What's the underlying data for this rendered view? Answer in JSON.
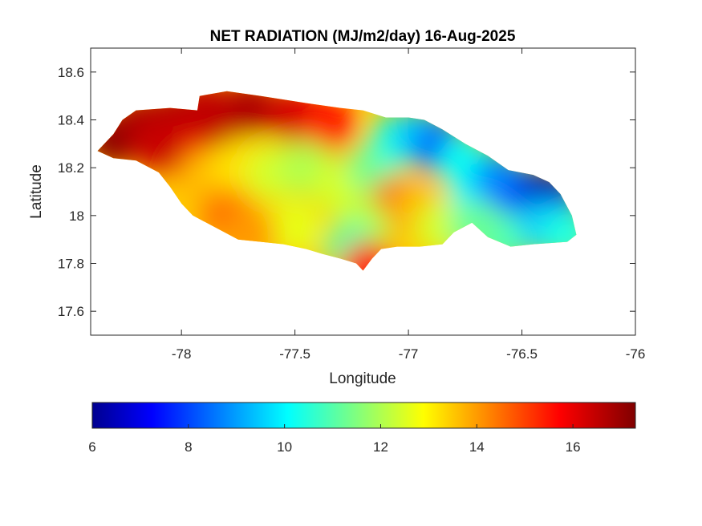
{
  "chart_data": {
    "type": "heatmap",
    "title": "NET RADIATION (MJ/m2/day) 16-Aug-2025",
    "xlabel": "Longitude",
    "ylabel": "Latitude",
    "xlim": [
      -78.4,
      -76
    ],
    "ylim": [
      17.5,
      18.7
    ],
    "xticks": [
      -78,
      -77.5,
      -77,
      -76.5,
      -76
    ],
    "xtick_labels": [
      "-78",
      "-77.5",
      "-77",
      "-76.5",
      "-76"
    ],
    "yticks": [
      17.6,
      17.8,
      18,
      18.2,
      18.4,
      18.6
    ],
    "ytick_labels": [
      "17.6",
      "17.8",
      "18",
      "18.2",
      "18.4",
      "18.6"
    ],
    "colormap": "jet",
    "colorbar": {
      "range": [
        6,
        17.3
      ],
      "ticks": [
        6,
        8,
        10,
        12,
        14,
        16
      ],
      "tick_labels": [
        "6",
        "8",
        "10",
        "12",
        "14",
        "16"
      ],
      "orientation": "horizontal",
      "placement": "bottom"
    },
    "region": "Jamaica",
    "outline": [
      [
        -78.37,
        18.27
      ],
      [
        -78.3,
        18.34
      ],
      [
        -78.26,
        18.4
      ],
      [
        -78.2,
        18.44
      ],
      [
        -78.05,
        18.45
      ],
      [
        -77.93,
        18.44
      ],
      [
        -77.92,
        18.5
      ],
      [
        -77.8,
        18.52
      ],
      [
        -77.65,
        18.5
      ],
      [
        -77.45,
        18.47
      ],
      [
        -77.3,
        18.45
      ],
      [
        -77.2,
        18.44
      ],
      [
        -77.1,
        18.41
      ],
      [
        -77.0,
        18.41
      ],
      [
        -76.93,
        18.4
      ],
      [
        -76.85,
        18.36
      ],
      [
        -76.75,
        18.3
      ],
      [
        -76.65,
        18.25
      ],
      [
        -76.56,
        18.19
      ],
      [
        -76.45,
        18.17
      ],
      [
        -76.38,
        18.14
      ],
      [
        -76.33,
        18.09
      ],
      [
        -76.28,
        18.0
      ],
      [
        -76.26,
        17.92
      ],
      [
        -76.3,
        17.89
      ],
      [
        -76.45,
        17.88
      ],
      [
        -76.55,
        17.87
      ],
      [
        -76.65,
        17.91
      ],
      [
        -76.72,
        17.97
      ],
      [
        -76.8,
        17.93
      ],
      [
        -76.85,
        17.88
      ],
      [
        -76.95,
        17.87
      ],
      [
        -77.05,
        17.87
      ],
      [
        -77.12,
        17.86
      ],
      [
        -77.16,
        17.82
      ],
      [
        -77.2,
        17.77
      ],
      [
        -77.23,
        17.8
      ],
      [
        -77.3,
        17.82
      ],
      [
        -77.38,
        17.84
      ],
      [
        -77.45,
        17.86
      ],
      [
        -77.55,
        17.88
      ],
      [
        -77.65,
        17.89
      ],
      [
        -77.75,
        17.9
      ],
      [
        -77.85,
        17.95
      ],
      [
        -77.95,
        18.0
      ],
      [
        -78.0,
        18.05
      ],
      [
        -78.05,
        18.12
      ],
      [
        -78.1,
        18.18
      ],
      [
        -78.2,
        18.23
      ],
      [
        -78.3,
        18.24
      ]
    ],
    "field_points": [
      {
        "lon": -78.3,
        "lat": 18.32,
        "value": 17.2
      },
      {
        "lon": -78.18,
        "lat": 18.38,
        "value": 16.9
      },
      {
        "lon": -78.05,
        "lat": 18.4,
        "value": 16.8
      },
      {
        "lon": -78.0,
        "lat": 18.25,
        "value": 15.5
      },
      {
        "lon": -77.85,
        "lat": 18.4,
        "value": 16.5
      },
      {
        "lon": -77.7,
        "lat": 18.45,
        "value": 16.8
      },
      {
        "lon": -77.5,
        "lat": 18.42,
        "value": 16.4
      },
      {
        "lon": -77.35,
        "lat": 18.38,
        "value": 15.8
      },
      {
        "lon": -77.9,
        "lat": 18.15,
        "value": 13.8
      },
      {
        "lon": -77.75,
        "lat": 18.2,
        "value": 13.4
      },
      {
        "lon": -77.6,
        "lat": 18.18,
        "value": 12.6
      },
      {
        "lon": -77.45,
        "lat": 18.2,
        "value": 12.2
      },
      {
        "lon": -77.3,
        "lat": 18.12,
        "value": 12.6
      },
      {
        "lon": -77.15,
        "lat": 18.2,
        "value": 11.5
      },
      {
        "lon": -77.05,
        "lat": 18.32,
        "value": 10.6
      },
      {
        "lon": -76.95,
        "lat": 18.33,
        "value": 9.6
      },
      {
        "lon": -76.85,
        "lat": 18.28,
        "value": 8.4
      },
      {
        "lon": -76.75,
        "lat": 18.22,
        "value": 10.4
      },
      {
        "lon": -77.05,
        "lat": 18.05,
        "value": 14.9
      },
      {
        "lon": -76.95,
        "lat": 18.03,
        "value": 13.8
      },
      {
        "lon": -77.2,
        "lat": 17.95,
        "value": 12.3
      },
      {
        "lon": -77.5,
        "lat": 17.95,
        "value": 12.8
      },
      {
        "lon": -77.8,
        "lat": 18.0,
        "value": 14.6
      },
      {
        "lon": -77.7,
        "lat": 17.92,
        "value": 14.2
      },
      {
        "lon": -77.25,
        "lat": 17.86,
        "value": 11.2
      },
      {
        "lon": -77.18,
        "lat": 17.78,
        "value": 15.8
      },
      {
        "lon": -76.85,
        "lat": 17.95,
        "value": 12.6
      },
      {
        "lon": -76.7,
        "lat": 18.1,
        "value": 10.2
      },
      {
        "lon": -76.6,
        "lat": 18.15,
        "value": 9.0
      },
      {
        "lon": -76.55,
        "lat": 18.05,
        "value": 8.8
      },
      {
        "lon": -76.45,
        "lat": 18.08,
        "value": 8.2
      },
      {
        "lon": -76.38,
        "lat": 18.07,
        "value": 6.4
      },
      {
        "lon": -76.35,
        "lat": 18.0,
        "value": 7.2
      },
      {
        "lon": -76.42,
        "lat": 17.95,
        "value": 9.6
      },
      {
        "lon": -76.3,
        "lat": 17.92,
        "value": 10.6
      },
      {
        "lon": -76.6,
        "lat": 17.9,
        "value": 11.0
      },
      {
        "lon": -76.7,
        "lat": 17.95,
        "value": 11.4
      },
      {
        "lon": -77.9,
        "lat": 18.45,
        "value": 16.6
      },
      {
        "lon": -78.1,
        "lat": 18.3,
        "value": 16.5
      }
    ]
  }
}
